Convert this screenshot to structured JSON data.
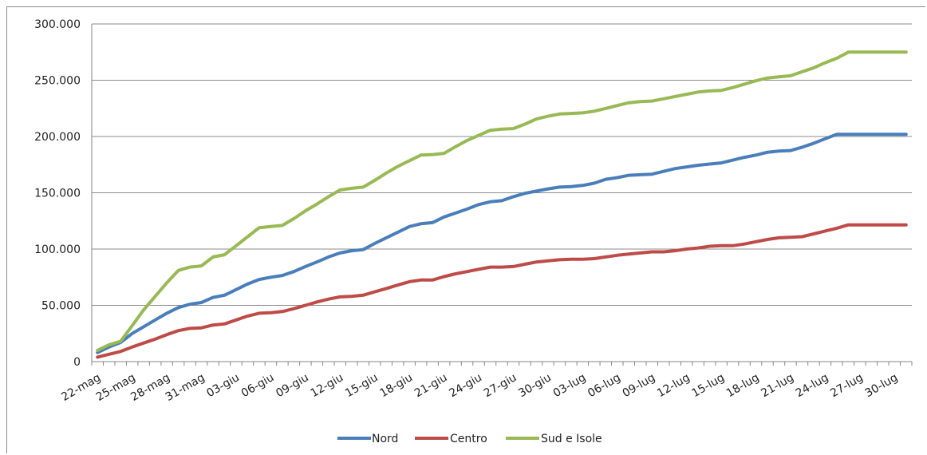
{
  "chart_data": {
    "type": "line",
    "title": "",
    "xlabel": "",
    "ylabel": "",
    "ylim": [
      0,
      300000
    ],
    "yticks": [
      0,
      50000,
      100000,
      150000,
      200000,
      250000,
      300000
    ],
    "ytick_labels": [
      "0",
      "50.000",
      "100.000",
      "150.000",
      "200.000",
      "250.000",
      "300.000"
    ],
    "grid": "horizontal",
    "legend_position": "bottom",
    "x": [
      "22-mag",
      "23-mag",
      "24-mag",
      "25-mag",
      "26-mag",
      "27-mag",
      "28-mag",
      "29-mag",
      "30-mag",
      "31-mag",
      "01-giu",
      "02-giu",
      "03-giu",
      "04-giu",
      "05-giu",
      "06-giu",
      "07-giu",
      "08-giu",
      "09-giu",
      "10-giu",
      "11-giu",
      "12-giu",
      "13-giu",
      "14-giu",
      "15-giu",
      "16-giu",
      "17-giu",
      "18-giu",
      "19-giu",
      "20-giu",
      "21-giu",
      "22-giu",
      "23-giu",
      "24-giu",
      "25-giu",
      "26-giu",
      "27-giu",
      "28-giu",
      "29-giu",
      "30-giu",
      "01-lug",
      "02-lug",
      "03-lug",
      "04-lug",
      "05-lug",
      "06-lug",
      "07-lug",
      "08-lug",
      "09-lug",
      "10-lug",
      "11-lug",
      "12-lug",
      "13-lug",
      "14-lug",
      "15-lug",
      "16-lug",
      "17-lug",
      "18-lug",
      "19-lug",
      "20-lug",
      "21-lug",
      "22-lug",
      "23-lug",
      "24-lug",
      "25-lug",
      "26-lug",
      "27-lug",
      "28-lug",
      "29-lug",
      "30-lug",
      "31-lug"
    ],
    "x_tick_labels": [
      "22-mag",
      "25-mag",
      "28-mag",
      "31-mag",
      "03-giu",
      "06-giu",
      "09-giu",
      "12-giu",
      "15-giu",
      "18-giu",
      "21-giu",
      "24-giu",
      "27-giu",
      "30-giu",
      "03-lug",
      "06-lug",
      "09-lug",
      "12-lug",
      "15-lug",
      "18-lug",
      "21-lug",
      "24-lug",
      "27-lug",
      "30-lug"
    ],
    "series": [
      {
        "name": "Nord",
        "color": "#4a7ebb",
        "values": [
          8000,
          13000,
          17000,
          25000,
          31000,
          37000,
          43000,
          48000,
          51000,
          52500,
          57000,
          59000,
          64000,
          69000,
          73000,
          75000,
          76500,
          80000,
          84500,
          88500,
          93000,
          96500,
          98500,
          99500,
          105000,
          110000,
          115000,
          120000,
          122500,
          123500,
          128500,
          132000,
          135500,
          139500,
          142000,
          143000,
          146500,
          149500,
          151500,
          153500,
          155000,
          155500,
          156500,
          158500,
          162000,
          163500,
          165500,
          166000,
          166500,
          169000,
          171500,
          173000,
          174500,
          175500,
          176500,
          179000,
          181500,
          183500,
          186000,
          187000,
          187500,
          190500,
          194000,
          198000,
          202000,
          202000,
          202000,
          202000,
          202000,
          202000,
          202000
        ]
      },
      {
        "name": "Centro",
        "color": "#be4b48",
        "values": [
          4000,
          6500,
          9000,
          13000,
          16500,
          20000,
          24000,
          27500,
          29500,
          30000,
          32500,
          33500,
          37000,
          40500,
          43000,
          43500,
          44500,
          47000,
          50000,
          53000,
          55500,
          57500,
          58000,
          59000,
          62000,
          65000,
          68000,
          71000,
          72500,
          72500,
          75500,
          78000,
          80000,
          82000,
          84000,
          84000,
          84500,
          86500,
          88500,
          89500,
          90500,
          91000,
          91000,
          91500,
          93000,
          94500,
          95500,
          96500,
          97500,
          97500,
          98500,
          100000,
          101000,
          102500,
          103000,
          103000,
          104500,
          106500,
          108500,
          110000,
          110500,
          111000,
          113500,
          116000,
          118500,
          121500,
          121500,
          121500,
          121500,
          121500,
          121500
        ]
      },
      {
        "name": "Sud e Isole",
        "color": "#98b954",
        "values": [
          10000,
          15000,
          18000,
          32000,
          46000,
          58000,
          70000,
          81000,
          84000,
          85000,
          93000,
          95000,
          103000,
          111000,
          119000,
          120000,
          121000,
          127000,
          134000,
          140000,
          146500,
          152500,
          154000,
          155000,
          161000,
          167500,
          173500,
          178500,
          183500,
          184000,
          185000,
          191000,
          196500,
          201000,
          205500,
          206500,
          207000,
          211000,
          215500,
          218000,
          220000,
          220500,
          221000,
          222500,
          225000,
          227500,
          230000,
          231000,
          231500,
          233500,
          235500,
          237500,
          239500,
          240500,
          241000,
          243500,
          246500,
          249500,
          252000,
          253000,
          254000,
          257500,
          261000,
          265500,
          269500,
          275000,
          275000,
          275000,
          275000,
          275000,
          275000
        ]
      }
    ]
  }
}
